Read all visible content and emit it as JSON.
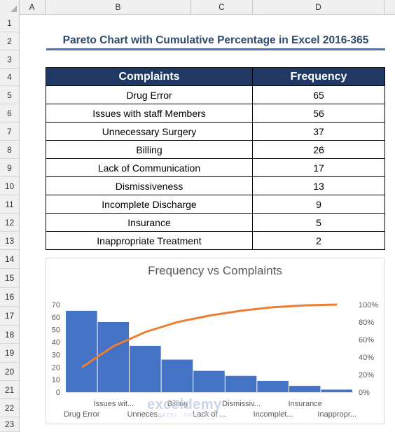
{
  "columns": [
    "A",
    "B",
    "C",
    "D"
  ],
  "rows": [
    "1",
    "2",
    "3",
    "4",
    "5",
    "6",
    "7",
    "8",
    "9",
    "10",
    "11",
    "12",
    "13",
    "14",
    "15",
    "16",
    "17",
    "18",
    "19",
    "20",
    "21",
    "22",
    "23"
  ],
  "sheet_title": "Pareto Chart with Cumulative Percentage in Excel 2016-365",
  "table": {
    "headers": [
      "Complaints",
      "Frequency"
    ],
    "rows": [
      {
        "complaint": "Drug Error",
        "frequency": "65"
      },
      {
        "complaint": "Issues with staff Members",
        "frequency": "56"
      },
      {
        "complaint": "Unnecessary Surgery",
        "frequency": "37"
      },
      {
        "complaint": "Billing",
        "frequency": "26"
      },
      {
        "complaint": "Lack of Communication",
        "frequency": "17"
      },
      {
        "complaint": "Dismissiveness",
        "frequency": "13"
      },
      {
        "complaint": "Incomplete Discharge",
        "frequency": "9"
      },
      {
        "complaint": "Insurance",
        "frequency": "5"
      },
      {
        "complaint": "Inappropriate Treatment",
        "frequency": "2"
      }
    ]
  },
  "watermark": {
    "name": "exceldemy",
    "tagline": "EXCEL · DATA · BI"
  },
  "chart_data": {
    "type": "bar",
    "title": "Frequency vs Complaints",
    "categories": [
      "Drug Error",
      "Issues wit...",
      "Unneces...",
      "Billing",
      "Lack of ...",
      "Dismissiv...",
      "Incomplet...",
      "Insurance",
      "Inappropr..."
    ],
    "series": [
      {
        "values": [
          65,
          56,
          37,
          26,
          17,
          13,
          9,
          5,
          2
        ],
        "color": "#4472c4",
        "type": "bar"
      },
      {
        "values": [
          28.3,
          52.6,
          68.7,
          80.0,
          87.4,
          93.0,
          97.0,
          99.1,
          100.0
        ],
        "color": "#ed7d31",
        "type": "line",
        "axis": "secondary"
      }
    ],
    "yticks": [
      "0",
      "10",
      "20",
      "30",
      "40",
      "50",
      "60",
      "70"
    ],
    "ylim": [
      0,
      70
    ],
    "y2ticks": [
      "0%",
      "20%",
      "40%",
      "60%",
      "80%",
      "100%"
    ],
    "y2lim": [
      0,
      100
    ],
    "grid": false,
    "legend": "none"
  }
}
